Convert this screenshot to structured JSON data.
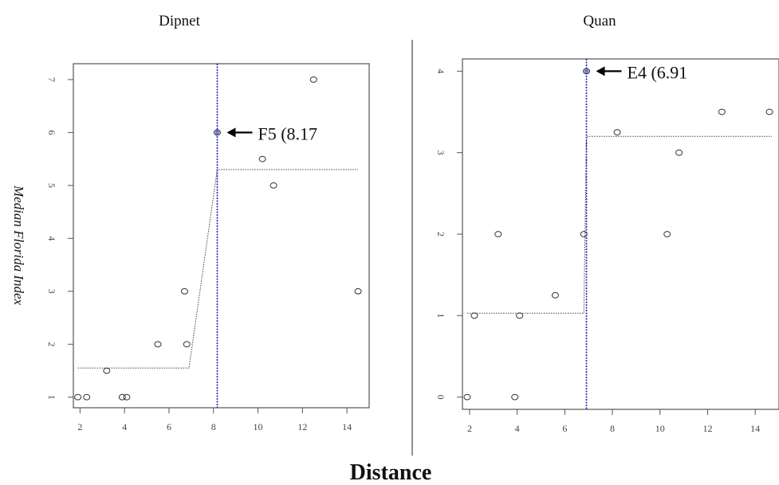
{
  "figure": {
    "ylabel": "Median Florida Index",
    "xlabel": "Distance",
    "colors": {
      "threshold_line": "#1f1fbf",
      "points": "#333333",
      "fit": "#444444",
      "frame": "#555555"
    }
  },
  "chart_data": [
    {
      "type": "scatter",
      "title": "Dipnet",
      "xlim": [
        1.7,
        15.0
      ],
      "ylim": [
        0.8,
        7.3
      ],
      "xticks": [
        2,
        4,
        6,
        8,
        10,
        12,
        14
      ],
      "yticks": [
        1,
        2,
        3,
        4,
        5,
        6,
        7
      ],
      "points": [
        {
          "x": 1.9,
          "y": 1
        },
        {
          "x": 2.3,
          "y": 1
        },
        {
          "x": 3.2,
          "y": 1.5
        },
        {
          "x": 3.9,
          "y": 1
        },
        {
          "x": 4.1,
          "y": 1
        },
        {
          "x": 5.5,
          "y": 2
        },
        {
          "x": 6.8,
          "y": 2
        },
        {
          "x": 6.7,
          "y": 3
        },
        {
          "x": 8.17,
          "y": 6
        },
        {
          "x": 10.2,
          "y": 5.5
        },
        {
          "x": 10.7,
          "y": 5
        },
        {
          "x": 12.5,
          "y": 7
        },
        {
          "x": 14.5,
          "y": 3
        }
      ],
      "fit": [
        {
          "x": 1.9,
          "y": 1.55
        },
        {
          "x": 6.9,
          "y": 1.55
        },
        {
          "x": 8.17,
          "y": 5.3
        },
        {
          "x": 14.5,
          "y": 5.3
        }
      ],
      "threshold_x": 8.17,
      "highlight": {
        "x": 8.17,
        "y": 6
      },
      "annotation": "F5 (8.17"
    },
    {
      "type": "scatter",
      "title": "Quan",
      "xlim": [
        1.7,
        15.0
      ],
      "ylim": [
        -0.15,
        4.15
      ],
      "xticks": [
        2,
        4,
        6,
        8,
        10,
        12,
        14
      ],
      "yticks": [
        0,
        1,
        2,
        3,
        4
      ],
      "points": [
        {
          "x": 1.9,
          "y": 0
        },
        {
          "x": 2.2,
          "y": 1
        },
        {
          "x": 3.2,
          "y": 2
        },
        {
          "x": 3.9,
          "y": 0
        },
        {
          "x": 4.1,
          "y": 1
        },
        {
          "x": 5.6,
          "y": 1.25
        },
        {
          "x": 6.8,
          "y": 2
        },
        {
          "x": 6.91,
          "y": 4
        },
        {
          "x": 8.2,
          "y": 3.25
        },
        {
          "x": 10.3,
          "y": 2
        },
        {
          "x": 10.8,
          "y": 3
        },
        {
          "x": 12.6,
          "y": 3.5
        },
        {
          "x": 14.6,
          "y": 3.5
        }
      ],
      "fit": [
        {
          "x": 1.9,
          "y": 1.03
        },
        {
          "x": 6.8,
          "y": 1.03
        },
        {
          "x": 6.91,
          "y": 3.2
        },
        {
          "x": 14.7,
          "y": 3.2
        }
      ],
      "threshold_x": 6.91,
      "highlight": {
        "x": 6.91,
        "y": 4
      },
      "annotation": "E4 (6.91"
    }
  ]
}
